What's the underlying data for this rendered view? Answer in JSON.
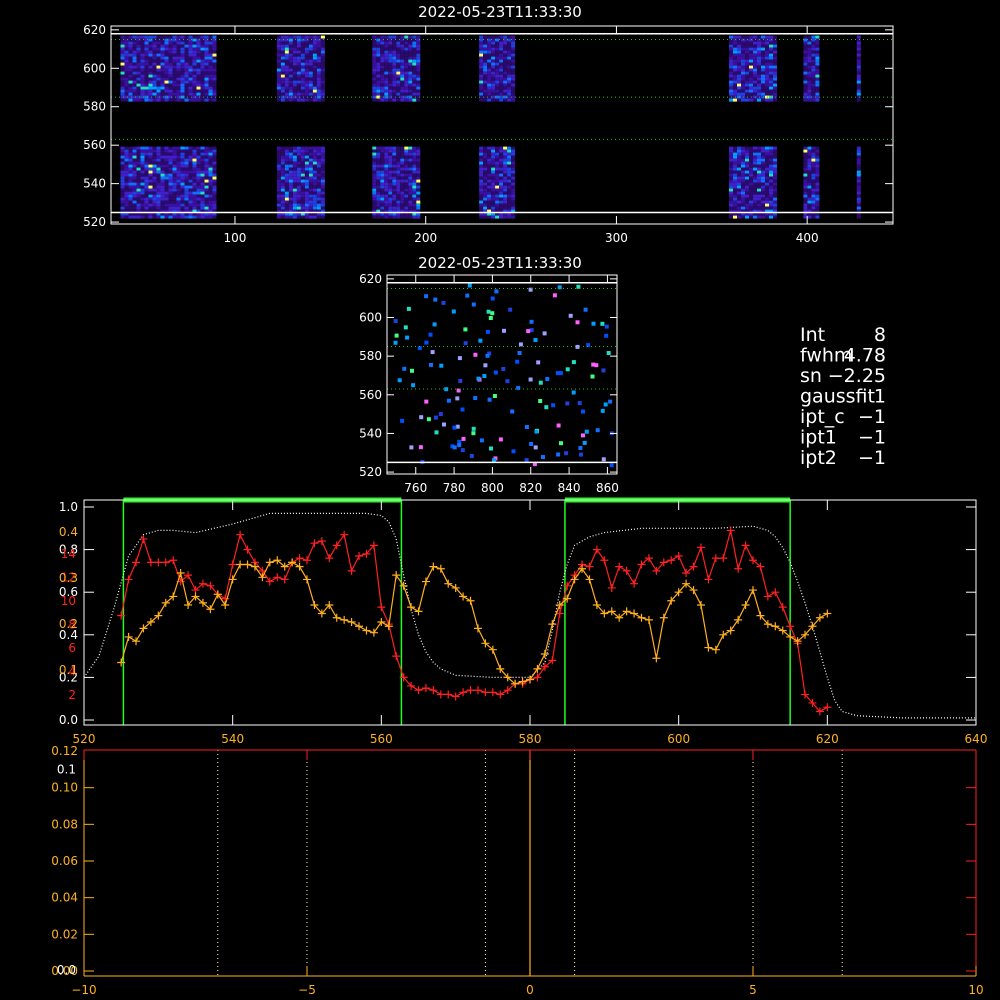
{
  "chart_data": [
    {
      "id": "image_top",
      "type": "heatmap",
      "title": "2022-05-23T11:33:30",
      "xlim": [
        35,
        445
      ],
      "ylim": [
        519,
        622
      ],
      "xticks": [
        100,
        200,
        300,
        400
      ],
      "yticks": [
        520,
        540,
        560,
        580,
        600,
        620
      ],
      "guide_lines_y": [
        525,
        618
      ],
      "dotted_lines_y": [
        563,
        585,
        615
      ],
      "data_columns": [
        [
          40,
          90
        ],
        [
          122,
          146
        ],
        [
          172,
          196
        ],
        [
          228,
          246
        ],
        [
          359,
          384
        ],
        [
          398,
          406
        ],
        [
          426,
          428
        ]
      ],
      "gap_rows": [
        584,
        560
      ]
    },
    {
      "id": "image_small",
      "type": "heatmap",
      "title": "2022-05-23T11:33:30",
      "xlim": [
        745,
        865
      ],
      "ylim": [
        519,
        622
      ],
      "xticks": [
        760,
        780,
        800,
        820,
        840,
        860
      ],
      "yticks": [
        520,
        540,
        560,
        580,
        600,
        620
      ],
      "guide_lines_y": [
        525,
        618
      ],
      "dotted_lines_y": [
        563,
        585,
        615
      ]
    },
    {
      "id": "spectrum",
      "type": "line",
      "xlim": [
        520,
        640
      ],
      "ylim": [
        0,
        1
      ],
      "xticks": [
        520,
        540,
        560,
        580,
        600,
        620,
        640
      ],
      "xtick_labels": [
        "520",
        "540",
        "560",
        "580",
        "600",
        "620",
        "640"
      ],
      "yticks_white": [
        0.0,
        0.2,
        0.4,
        0.6,
        0.8,
        1.0
      ],
      "ytick_labels_white": [
        "0.0",
        "0.2",
        "0.4",
        "0.6",
        "0.8",
        "1.0"
      ],
      "ytick_labels_red": [
        "2",
        "4",
        "6",
        "8",
        "10",
        "12",
        "14"
      ],
      "ytick_labels_orange": [
        "0.1",
        "0.2",
        "0.3",
        "0.4"
      ],
      "windows": [
        [
          525.3,
          562.7
        ],
        [
          584.7,
          615.0
        ]
      ],
      "series": [
        {
          "color": "#ffffff",
          "style": "dotted",
          "x": [
            520,
            522,
            524,
            526,
            528,
            530,
            532,
            535,
            540,
            545,
            550,
            555,
            558,
            560,
            561,
            562,
            563,
            564,
            565,
            566,
            567,
            568,
            570,
            575,
            580,
            582,
            583,
            584,
            585,
            586,
            588,
            590,
            595,
            600,
            605,
            610,
            612,
            613,
            614,
            615,
            616,
            617,
            618,
            619,
            620,
            621,
            622,
            624,
            630,
            635,
            640
          ],
          "y": [
            0.2,
            0.3,
            0.52,
            0.77,
            0.87,
            0.89,
            0.89,
            0.88,
            0.92,
            0.97,
            0.97,
            0.97,
            0.97,
            0.96,
            0.93,
            0.85,
            0.68,
            0.52,
            0.4,
            0.32,
            0.27,
            0.24,
            0.21,
            0.2,
            0.2,
            0.27,
            0.42,
            0.6,
            0.73,
            0.82,
            0.86,
            0.88,
            0.9,
            0.9,
            0.9,
            0.91,
            0.89,
            0.86,
            0.81,
            0.74,
            0.65,
            0.55,
            0.44,
            0.32,
            0.2,
            0.09,
            0.04,
            0.02,
            0.01,
            0.01,
            0.01
          ]
        },
        {
          "color": "#ff2020",
          "style": "line+cross",
          "x": [
            525,
            526,
            527,
            528,
            529,
            530,
            531,
            532,
            533,
            534,
            535,
            536,
            537,
            538,
            539,
            540,
            541,
            542,
            543,
            544,
            545,
            546,
            547,
            548,
            549,
            550,
            551,
            552,
            553,
            554,
            555,
            556,
            557,
            558,
            559,
            560,
            561,
            562,
            563,
            564,
            565,
            566,
            567,
            568,
            569,
            570,
            571,
            572,
            573,
            574,
            575,
            576,
            577,
            578,
            579,
            580,
            581,
            582,
            583,
            584,
            585,
            586,
            587,
            588,
            589,
            590,
            591,
            592,
            593,
            594,
            595,
            596,
            597,
            598,
            599,
            600,
            601,
            602,
            603,
            604,
            605,
            606,
            607,
            608,
            609,
            610,
            611,
            612,
            613,
            614,
            615,
            616,
            617,
            618,
            619,
            620
          ],
          "y": [
            0.49,
            0.66,
            0.74,
            0.85,
            0.74,
            0.74,
            0.74,
            0.75,
            0.65,
            0.68,
            0.61,
            0.64,
            0.63,
            0.59,
            0.57,
            0.73,
            0.87,
            0.8,
            0.74,
            0.7,
            0.65,
            0.67,
            0.66,
            0.74,
            0.76,
            0.75,
            0.83,
            0.84,
            0.76,
            0.82,
            0.87,
            0.7,
            0.77,
            0.78,
            0.82,
            0.53,
            0.45,
            0.3,
            0.2,
            0.16,
            0.14,
            0.15,
            0.14,
            0.12,
            0.12,
            0.11,
            0.13,
            0.14,
            0.14,
            0.13,
            0.13,
            0.12,
            0.14,
            0.17,
            0.17,
            0.19,
            0.2,
            0.25,
            0.28,
            0.5,
            0.63,
            0.68,
            0.73,
            0.72,
            0.8,
            0.75,
            0.62,
            0.72,
            0.7,
            0.64,
            0.73,
            0.76,
            0.7,
            0.74,
            0.75,
            0.77,
            0.69,
            0.72,
            0.81,
            0.66,
            0.76,
            0.76,
            0.89,
            0.71,
            0.82,
            0.75,
            0.72,
            0.58,
            0.6,
            0.53,
            0.44,
            0.36,
            0.12,
            0.08,
            0.04,
            0.06
          ]
        },
        {
          "color": "#ffb020",
          "style": "line+cross",
          "x": [
            525,
            526,
            527,
            528,
            529,
            530,
            531,
            532,
            533,
            534,
            535,
            536,
            537,
            538,
            539,
            540,
            541,
            542,
            543,
            544,
            545,
            546,
            547,
            548,
            549,
            550,
            551,
            552,
            553,
            554,
            555,
            556,
            557,
            558,
            559,
            560,
            561,
            562,
            563,
            564,
            565,
            566,
            567,
            568,
            569,
            570,
            571,
            572,
            573,
            574,
            575,
            576,
            577,
            578,
            579,
            580,
            581,
            582,
            583,
            584,
            585,
            586,
            587,
            588,
            589,
            590,
            591,
            592,
            593,
            594,
            595,
            596,
            597,
            598,
            599,
            600,
            601,
            602,
            603,
            604,
            605,
            606,
            607,
            608,
            609,
            610,
            611,
            612,
            613,
            614,
            615,
            616,
            617,
            618,
            619,
            620
          ],
          "y": [
            0.27,
            0.39,
            0.37,
            0.43,
            0.46,
            0.49,
            0.55,
            0.58,
            0.69,
            0.54,
            0.58,
            0.55,
            0.52,
            0.59,
            0.54,
            0.66,
            0.73,
            0.73,
            0.72,
            0.67,
            0.74,
            0.75,
            0.72,
            0.74,
            0.72,
            0.66,
            0.54,
            0.5,
            0.54,
            0.48,
            0.47,
            0.46,
            0.44,
            0.42,
            0.41,
            0.46,
            0.44,
            0.68,
            0.63,
            0.53,
            0.51,
            0.65,
            0.72,
            0.71,
            0.64,
            0.62,
            0.58,
            0.56,
            0.43,
            0.36,
            0.33,
            0.24,
            0.2,
            0.17,
            0.18,
            0.19,
            0.24,
            0.31,
            0.45,
            0.54,
            0.57,
            0.66,
            0.71,
            0.66,
            0.54,
            0.5,
            0.51,
            0.48,
            0.51,
            0.5,
            0.48,
            0.47,
            0.29,
            0.48,
            0.56,
            0.6,
            0.64,
            0.61,
            0.54,
            0.34,
            0.33,
            0.4,
            0.42,
            0.47,
            0.54,
            0.61,
            0.49,
            0.45,
            0.44,
            0.42,
            0.39,
            0.37,
            0.4,
            0.44,
            0.48,
            0.5
          ]
        }
      ]
    },
    {
      "id": "bottom_plot",
      "type": "line",
      "xlim": [
        -10,
        10
      ],
      "ylim": [
        0,
        0.12
      ],
      "xticks": [
        -10,
        -5,
        0,
        5,
        10
      ],
      "xtick_labels": [
        "−10",
        "−5",
        "0",
        "5",
        "10"
      ],
      "yticks": [
        0.0,
        0.02,
        0.04,
        0.06,
        0.08,
        0.1
      ],
      "ytick_labels_orange": [
        "0.00",
        "0.02",
        "0.04",
        "0.06",
        "0.08",
        "0.10",
        "0.12"
      ],
      "ytick_labels_white_overlap": [
        "0.1",
        "0.0"
      ],
      "dotted_lines_x": [
        -7,
        -5,
        -1,
        1,
        5,
        7
      ],
      "vertical_line_x": 0
    }
  ],
  "info": {
    "lines": [
      {
        "label": "Int",
        "value": "8"
      },
      {
        "label": "fwhm",
        "value": "4.78"
      },
      {
        "label": "sn",
        "value": "−2.25"
      },
      {
        "label": "gaussfit",
        "value": "1"
      },
      {
        "label": "ipt_c",
        "value": "−1"
      },
      {
        "label": "ipt1",
        "value": "−1"
      },
      {
        "label": "ipt2",
        "value": "−1"
      }
    ]
  },
  "colors": {
    "axis": "#ffffff",
    "green": "#20ff20",
    "red": "#ff2020",
    "orange": "#ffb020",
    "dotted_green": "#20c020"
  }
}
